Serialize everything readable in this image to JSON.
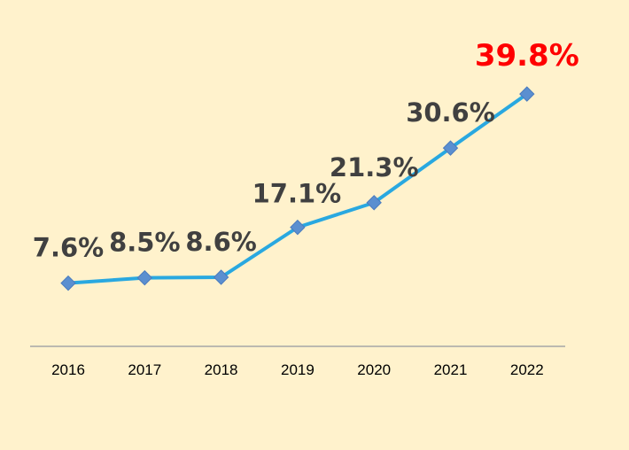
{
  "chart_data": {
    "type": "line",
    "categories": [
      "2016",
      "2017",
      "2018",
      "2019",
      "2020",
      "2021",
      "2022"
    ],
    "values": [
      7.6,
      8.5,
      8.6,
      17.1,
      21.3,
      30.6,
      39.8
    ],
    "data_labels": [
      "7.6%",
      "8.5%",
      "8.6%",
      "17.1%",
      "21.3%",
      "30.6%",
      "39.8%"
    ],
    "title": "",
    "xlabel": "",
    "ylabel": "",
    "ylim": [
      0,
      45
    ],
    "grid": false,
    "legend": "none",
    "highlight_index": 6
  },
  "colors": {
    "background": "#fff2cc",
    "line": "#29a8e0",
    "marker": "#5b8fd0",
    "axis": "#a6a6a6",
    "tick_text": "#000000",
    "label_text": "#404040",
    "highlight_label": "#ff0000"
  }
}
